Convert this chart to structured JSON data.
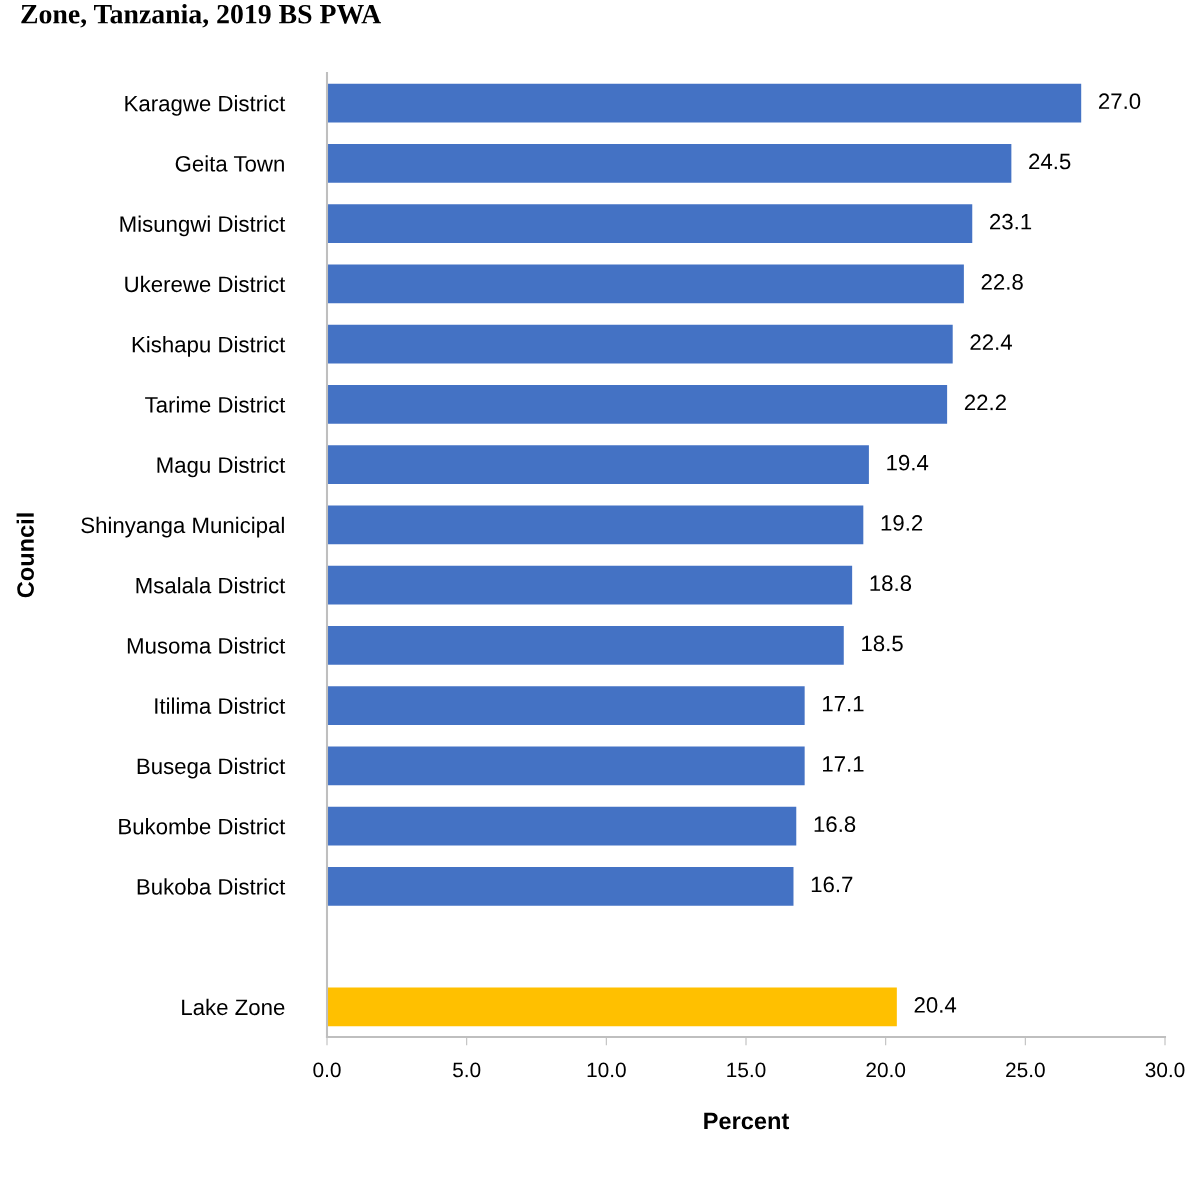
{
  "chart_data": {
    "type": "bar",
    "orientation": "horizontal",
    "title": "Zone, Tanzania, 2019 BS PWA",
    "xlabel": "Percent",
    "ylabel": "Council",
    "categories": [
      "Karagwe District",
      "Geita Town",
      "Misungwi District",
      "Ukerewe District",
      "Kishapu District",
      "Tarime District",
      "Magu District",
      "Shinyanga Municipal",
      "Msalala District",
      "Musoma District",
      "Itilima District",
      "Busega District",
      "Bukombe District",
      "Bukoba District",
      null,
      "Lake Zone"
    ],
    "values": [
      27.0,
      24.5,
      23.1,
      22.8,
      22.4,
      22.2,
      19.4,
      19.2,
      18.8,
      18.5,
      17.1,
      17.1,
      16.8,
      16.7,
      null,
      20.4
    ],
    "colors": [
      "#4472c4",
      "#4472c4",
      "#4472c4",
      "#4472c4",
      "#4472c4",
      "#4472c4",
      "#4472c4",
      "#4472c4",
      "#4472c4",
      "#4472c4",
      "#4472c4",
      "#4472c4",
      "#4472c4",
      "#4472c4",
      "#4472c4",
      "#ffc000"
    ],
    "xlim": [
      0,
      30
    ],
    "xticks": [
      {
        "value": 0,
        "label": "0.0"
      },
      {
        "value": 5,
        "label": "5.0"
      },
      {
        "value": 10,
        "label": "10.0"
      },
      {
        "value": 15,
        "label": "15.0"
      },
      {
        "value": 20,
        "label": "20.0"
      },
      {
        "value": 25,
        "label": "25.0"
      },
      {
        "value": 30,
        "label": "30.0"
      }
    ],
    "value_labels": [
      "27.0",
      "24.5",
      "23.1",
      "22.8",
      "22.4",
      "22.2",
      "19.4",
      "19.2",
      "18.8",
      "18.5",
      "17.1",
      "17.1",
      "16.8",
      "16.7",
      null,
      "20.4"
    ],
    "grid": false,
    "legend": false
  }
}
